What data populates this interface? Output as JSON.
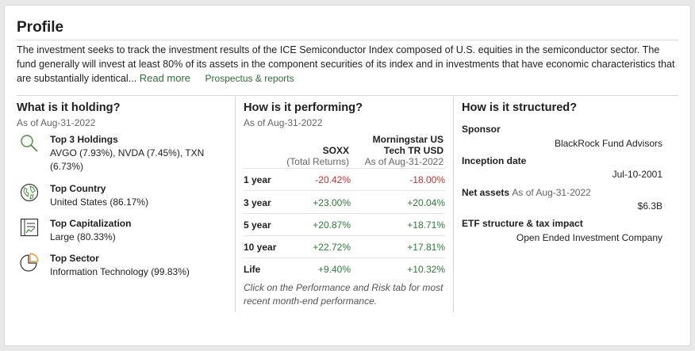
{
  "profile": {
    "title": "Profile",
    "description": "The investment seeks to track the investment results of the ICE Semiconductor Index composed of U.S. equities in the semiconductor sector. The fund generally will invest at least 80% of its assets in the component securities of its index and in investments that have economic characteristics that are substantially identical...",
    "read_more": "Read more",
    "prospectus": "Prospectus & reports"
  },
  "holding": {
    "heading": "What is it holding?",
    "as_of": "As of Aug-31-2022",
    "items": [
      {
        "title": "Top 3 Holdings",
        "value": "AVGO (7.93%), NVDA (7.45%), TXN (6.73%)",
        "icon": "magnifier-icon"
      },
      {
        "title": "Top Country",
        "value": "United States (86.17%)",
        "icon": "globe-icon"
      },
      {
        "title": "Top Capitalization",
        "value": "Large (80.33%)",
        "icon": "document-chart-icon"
      },
      {
        "title": "Top Sector",
        "value": "Information Technology (99.83%)",
        "icon": "pie-chart-icon"
      }
    ]
  },
  "performance": {
    "heading": "How is it performing?",
    "as_of": "As of Aug-31-2022",
    "col1_title": "SOXX",
    "col1_sub": "(Total Returns)",
    "col2_title_line1": "Morningstar US",
    "col2_title_line2": "Tech TR USD",
    "col2_sub": "As of Aug-31-2022",
    "rows": [
      {
        "label": "1 year",
        "v1": "-20.42%",
        "v2": "-18.00%"
      },
      {
        "label": "3 year",
        "v1": "+23.00%",
        "v2": "+20.04%"
      },
      {
        "label": "5 year",
        "v1": "+20.87%",
        "v2": "+18.71%"
      },
      {
        "label": "10 year",
        "v1": "+22.72%",
        "v2": "+17.81%"
      },
      {
        "label": "Life",
        "v1": "+9.40%",
        "v2": "+10.32%"
      }
    ],
    "note": "Click on the Performance and Risk tab for most recent month-end performance.",
    "colors": {
      "negative": "#c8302c",
      "positive": "#2f7a3a"
    }
  },
  "structure": {
    "heading": "How is it structured?",
    "sponsor_label": "Sponsor",
    "sponsor_value": "BlackRock Fund Advisors",
    "inception_label": "Inception date",
    "inception_value": "Jul-10-2001",
    "net_assets_label": "Net assets",
    "net_assets_as_of": "As of Aug-31-2022",
    "net_assets_value": "$6.3B",
    "etf_label": "ETF structure & tax impact",
    "etf_value": "Open Ended Investment Company"
  }
}
